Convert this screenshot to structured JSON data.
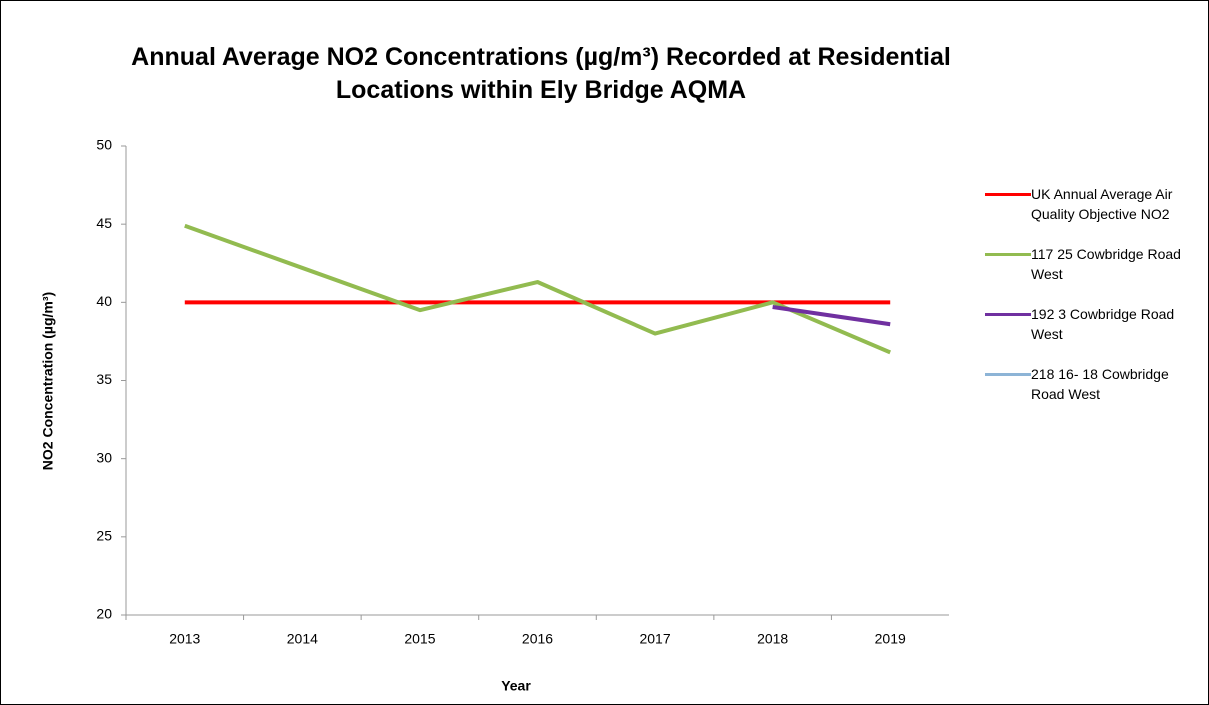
{
  "chart_data": {
    "type": "line",
    "title": "Annual Average NO2 Concentrations (µg/m³) Recorded at Residential Locations within Ely Bridge AQMA",
    "x_label": "Year",
    "y_label": "NO2 Concentration (µg/m³)",
    "categories": [
      "2013",
      "2014",
      "2015",
      "2016",
      "2017",
      "2018",
      "2019"
    ],
    "series": [
      {
        "name": "UK Annual Average Air Quality Objective NO2",
        "color": "#ff0000",
        "values": [
          40,
          40,
          40,
          40,
          40,
          40,
          40
        ]
      },
      {
        "name": "117 25 Cowbridge Road West",
        "color": "#92bb50",
        "values": [
          44.9,
          42.2,
          39.5,
          41.3,
          38.0,
          40.0,
          36.8
        ]
      },
      {
        "name": "192 3 Cowbridge Road West",
        "color": "#7030a0",
        "values": [
          null,
          null,
          null,
          null,
          null,
          39.7,
          38.6
        ]
      },
      {
        "name": "218 16- 18 Cowbridge Road West",
        "color": "#8db4d6",
        "values": [
          null,
          null,
          null,
          null,
          null,
          null,
          null
        ]
      }
    ],
    "ylim": [
      20,
      50
    ],
    "yticks": [
      20,
      25,
      30,
      35,
      40,
      45,
      50
    ],
    "grid": false,
    "legend": "right"
  }
}
